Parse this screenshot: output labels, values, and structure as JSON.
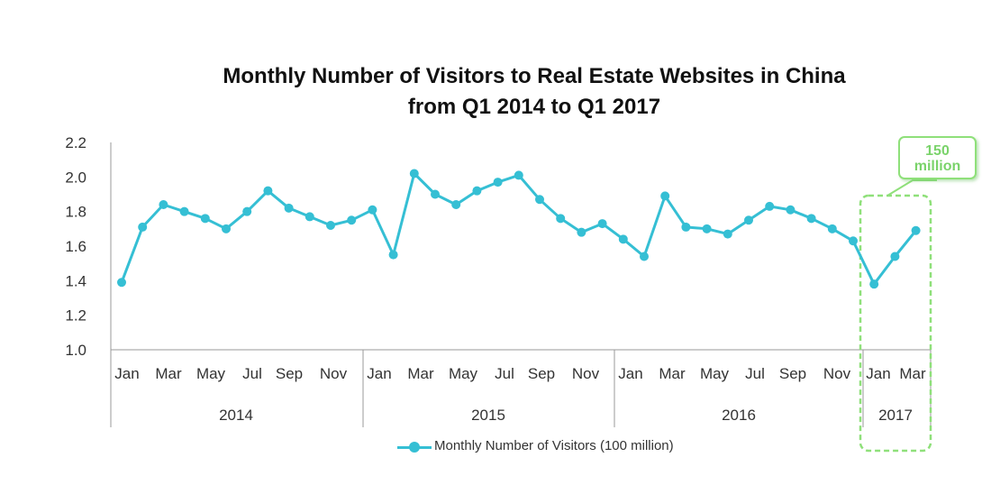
{
  "title_line1": "Monthly Number of Visitors to Real Estate Websites in China",
  "title_line2": "from Q1 2014 to Q1 2017",
  "callout": {
    "value": "150",
    "unit": "million"
  },
  "legend": {
    "label": "Monthly Number of Visitors (100 million)"
  },
  "colors": {
    "series": "#35bfd4",
    "highlight": "#8fe07a",
    "axis": "#999999"
  },
  "chart_data": {
    "type": "line",
    "ylim": [
      1.0,
      2.2
    ],
    "yticks": [
      "1.0",
      "1.2",
      "1.4",
      "1.6",
      "1.8",
      "2.0",
      "2.2"
    ],
    "grid": false,
    "legend_position": "bottom",
    "x_tick_labels": [
      "Jan",
      "Mar",
      "May",
      "Jul",
      "Sep",
      "Nov",
      "Jan",
      "Mar",
      "May",
      "Jul",
      "Sep",
      "Nov",
      "Jan",
      "Mar",
      "May",
      "Jul",
      "Sep",
      "Nov",
      "Jan",
      "Mar"
    ],
    "year_groups": [
      "2014",
      "2015",
      "2016",
      "2017"
    ],
    "x": [
      "2014-01",
      "2014-02",
      "2014-03",
      "2014-04",
      "2014-05",
      "2014-06",
      "2014-07",
      "2014-08",
      "2014-09",
      "2014-10",
      "2014-11",
      "2014-12",
      "2015-01",
      "2015-02",
      "2015-03",
      "2015-04",
      "2015-05",
      "2015-06",
      "2015-07",
      "2015-08",
      "2015-09",
      "2015-10",
      "2015-11",
      "2015-12",
      "2016-01",
      "2016-02",
      "2016-03",
      "2016-04",
      "2016-05",
      "2016-06",
      "2016-07",
      "2016-08",
      "2016-09",
      "2016-10",
      "2016-11",
      "2016-12",
      "2017-01",
      "2017-02",
      "2017-03"
    ],
    "series": [
      {
        "name": "Monthly Number of Visitors (100 million)",
        "values": [
          1.39,
          1.71,
          1.84,
          1.8,
          1.76,
          1.7,
          1.8,
          1.92,
          1.82,
          1.77,
          1.72,
          1.75,
          1.81,
          1.55,
          2.02,
          1.9,
          1.84,
          1.92,
          1.97,
          2.01,
          1.87,
          1.76,
          1.68,
          1.73,
          1.64,
          1.54,
          1.89,
          1.71,
          1.7,
          1.67,
          1.75,
          1.83,
          1.81,
          1.76,
          1.7,
          1.63,
          1.38,
          1.54,
          1.69
        ]
      }
    ]
  }
}
